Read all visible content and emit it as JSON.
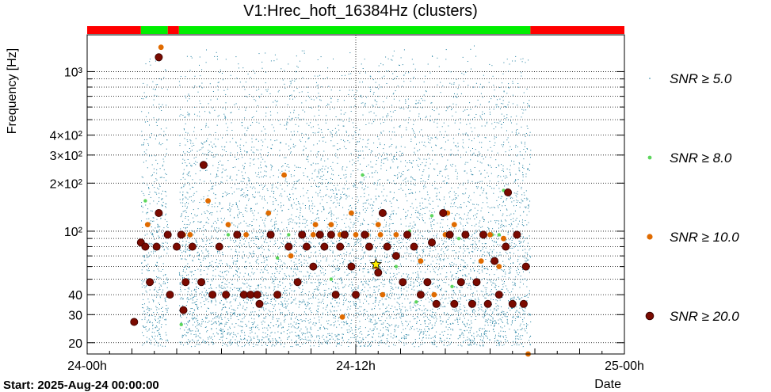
{
  "chart_data": {
    "type": "scatter",
    "title": "V1:Hrec_hoft_16384Hz (clusters)",
    "ylabel": "Frequency [Hz]",
    "xlabel": "Date",
    "footer": "Start: 2025-Aug-24 00:00:00",
    "x_unit": "hours since 2025-08-24 00:00",
    "xlim": [
      0,
      24
    ],
    "ylim": [
      17,
      1700
    ],
    "y_scale": "log",
    "grid": true,
    "x_ticks": [
      {
        "value": 0,
        "label": "24-00h"
      },
      {
        "value": 12,
        "label": "24-12h"
      },
      {
        "value": 24,
        "label": "25-00h"
      }
    ],
    "y_ticks": [
      {
        "value": 20,
        "label": "20"
      },
      {
        "value": 30,
        "label": "30"
      },
      {
        "value": 40,
        "label": "40"
      },
      {
        "value": 100,
        "label": "10²"
      },
      {
        "value": 200,
        "label": "2×10²"
      },
      {
        "value": 300,
        "label": "3×10²"
      },
      {
        "value": 400,
        "label": "4×10²"
      },
      {
        "value": 1000,
        "label": "10³"
      }
    ],
    "status_bar": [
      {
        "start": 0,
        "end": 2.4,
        "state": "off",
        "color": "#ff0000"
      },
      {
        "start": 2.4,
        "end": 3.6,
        "state": "on",
        "color": "#00ee00"
      },
      {
        "start": 3.6,
        "end": 4.1,
        "state": "off",
        "color": "#ff0000"
      },
      {
        "start": 4.1,
        "end": 19.8,
        "state": "on",
        "color": "#00ee00"
      },
      {
        "start": 19.8,
        "end": 24,
        "state": "off",
        "color": "#ff0000"
      }
    ],
    "legend_placement": "right",
    "series": [
      {
        "name": "SNR ≥ 5.0",
        "color": "#1f7ea0",
        "marker": "dot",
        "note": "dense background of clusters, ~20-1500 Hz",
        "coverage": [
          [
            2.4,
            3.6
          ],
          [
            4.1,
            19.8
          ]
        ]
      },
      {
        "name": "SNR ≥ 8.0",
        "color": "#5cd65c",
        "points": [
          [
            2.6,
            155
          ],
          [
            4.2,
            26
          ],
          [
            6.3,
            95
          ],
          [
            8.5,
            68
          ],
          [
            9.0,
            95
          ],
          [
            10.9,
            50
          ],
          [
            12.3,
            225
          ],
          [
            13.8,
            60
          ],
          [
            14.4,
            100
          ],
          [
            14.7,
            36
          ],
          [
            15.4,
            125
          ],
          [
            16.3,
            45
          ],
          [
            16.6,
            90
          ],
          [
            18.1,
            95
          ],
          [
            18.4,
            95
          ],
          [
            18.6,
            180
          ]
        ]
      },
      {
        "name": "SNR ≥ 10.0",
        "color": "#e06b00",
        "points": [
          [
            2.7,
            110
          ],
          [
            3.3,
            1420
          ],
          [
            4.3,
            95
          ],
          [
            4.6,
            95
          ],
          [
            5.4,
            155
          ],
          [
            6.3,
            110
          ],
          [
            7.1,
            95
          ],
          [
            8.1,
            130
          ],
          [
            8.2,
            95
          ],
          [
            8.8,
            225
          ],
          [
            9.1,
            70
          ],
          [
            10.1,
            95
          ],
          [
            10.2,
            110
          ],
          [
            10.9,
            110
          ],
          [
            11.3,
            95
          ],
          [
            11.8,
            130
          ],
          [
            11.4,
            29
          ],
          [
            12.0,
            95
          ],
          [
            12.5,
            95
          ],
          [
            13.0,
            110
          ],
          [
            13.1,
            95
          ],
          [
            12.9,
            60
          ],
          [
            13.2,
            40
          ],
          [
            13.8,
            95
          ],
          [
            14.9,
            65
          ],
          [
            15.5,
            40
          ],
          [
            16.0,
            95
          ],
          [
            16.1,
            130
          ],
          [
            16.4,
            110
          ],
          [
            17.6,
            65
          ],
          [
            18.0,
            95
          ],
          [
            18.4,
            60
          ],
          [
            18.6,
            90
          ],
          [
            19.7,
            17
          ]
        ]
      },
      {
        "name": "SNR ≥ 20.0",
        "color": "#7a0a00",
        "points": [
          [
            2.1,
            27
          ],
          [
            2.4,
            85
          ],
          [
            2.6,
            80
          ],
          [
            2.8,
            48
          ],
          [
            3.1,
            80
          ],
          [
            3.2,
            130
          ],
          [
            3.6,
            95
          ],
          [
            3.7,
            40
          ],
          [
            4.0,
            80
          ],
          [
            4.2,
            95
          ],
          [
            4.3,
            32
          ],
          [
            4.4,
            48
          ],
          [
            4.7,
            80
          ],
          [
            5.1,
            48
          ],
          [
            5.2,
            260
          ],
          [
            5.6,
            40
          ],
          [
            5.9,
            80
          ],
          [
            6.2,
            40
          ],
          [
            6.7,
            95
          ],
          [
            7.0,
            40
          ],
          [
            7.3,
            40
          ],
          [
            7.6,
            40
          ],
          [
            7.7,
            35
          ],
          [
            8.2,
            95
          ],
          [
            8.5,
            40
          ],
          [
            9.0,
            80
          ],
          [
            9.4,
            48
          ],
          [
            9.6,
            95
          ],
          [
            9.8,
            80
          ],
          [
            10.1,
            60
          ],
          [
            10.4,
            95
          ],
          [
            10.6,
            80
          ],
          [
            10.9,
            95
          ],
          [
            11.1,
            40
          ],
          [
            11.3,
            80
          ],
          [
            11.5,
            95
          ],
          [
            11.8,
            60
          ],
          [
            12.0,
            40
          ],
          [
            12.4,
            95
          ],
          [
            12.6,
            80
          ],
          [
            13.0,
            55
          ],
          [
            13.2,
            130
          ],
          [
            13.4,
            80
          ],
          [
            13.8,
            70
          ],
          [
            14.1,
            48
          ],
          [
            14.3,
            95
          ],
          [
            14.6,
            80
          ],
          [
            14.9,
            40
          ],
          [
            15.2,
            48
          ],
          [
            15.4,
            85
          ],
          [
            15.6,
            35
          ],
          [
            15.9,
            130
          ],
          [
            16.2,
            95
          ],
          [
            16.4,
            35
          ],
          [
            16.7,
            48
          ],
          [
            16.9,
            95
          ],
          [
            17.2,
            35
          ],
          [
            17.4,
            48
          ],
          [
            17.7,
            95
          ],
          [
            17.9,
            35
          ],
          [
            18.2,
            65
          ],
          [
            18.4,
            40
          ],
          [
            18.7,
            80
          ],
          [
            19.0,
            35
          ],
          [
            19.2,
            95
          ],
          [
            19.5,
            35
          ],
          [
            19.6,
            60
          ],
          [
            18.8,
            175
          ],
          [
            3.2,
            1230
          ]
        ]
      }
    ],
    "highlight": {
      "type": "star",
      "x": 12.9,
      "y": 62,
      "color": "#ffee00"
    }
  },
  "legend": [
    {
      "label": "SNR ≥ 5.0",
      "marker": "dot",
      "color": "#1f7ea0"
    },
    {
      "label": "SNR ≥ 8.0",
      "marker": "small",
      "color": "#5cd65c"
    },
    {
      "label": "SNR ≥ 10.0",
      "marker": "medium",
      "color": "#e06b00"
    },
    {
      "label": "SNR ≥ 20.0",
      "marker": "large",
      "color": "#7a0a00"
    }
  ]
}
